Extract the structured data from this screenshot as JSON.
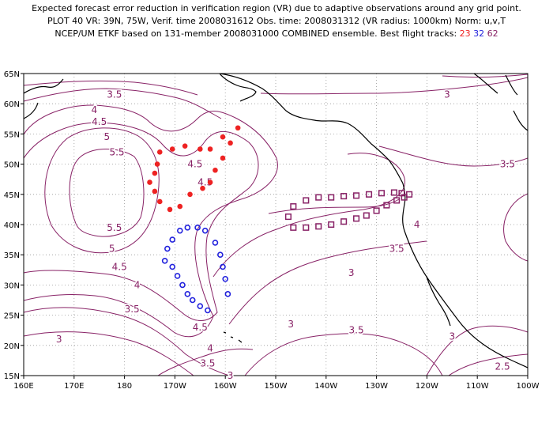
{
  "title": {
    "line1": "Expected forecast error reduction in verification region (VR) due to adaptive observations around any grid point.",
    "line2": "PLOT 40 VR: 39N, 75W, Verif. time 2008031612 Obs. time: 2008031312 (VR radius: 1000km) Norm: u,v,T",
    "line3_prefix": "NCEP/UM ETKF based on 131-member 2008031000 COMBINED ensemble.  Best flight tracks:",
    "track_labels": [
      "23",
      "32",
      "62"
    ]
  },
  "axes": {
    "lon_labels": [
      "160E",
      "170E",
      "180",
      "170W",
      "160W",
      "150W",
      "140W",
      "130W",
      "120W",
      "110W",
      "100W"
    ],
    "lat_labels": [
      "15N",
      "20N",
      "25N",
      "30N",
      "35N",
      "40N",
      "45N",
      "50N",
      "55N",
      "60N",
      "65N"
    ]
  },
  "contour_labels": [
    {
      "text": "3.5",
      "lon": 178,
      "lat": 61.5
    },
    {
      "text": "4",
      "lon": 174,
      "lat": 59
    },
    {
      "text": "4.5",
      "lon": 175,
      "lat": 57
    },
    {
      "text": "5",
      "lon": 176.5,
      "lat": 54.5
    },
    {
      "text": "5.5",
      "lon": 178.5,
      "lat": 52
    },
    {
      "text": "5.5",
      "lon": 178,
      "lat": 39.5
    },
    {
      "text": "5",
      "lon": 177.5,
      "lat": 36
    },
    {
      "text": "4.5",
      "lon": 179,
      "lat": 33
    },
    {
      "text": "4",
      "lon": 182.5,
      "lat": 30
    },
    {
      "text": "3.5",
      "lon": 181.5,
      "lat": 26
    },
    {
      "text": "3",
      "lon": 167,
      "lat": 21
    },
    {
      "text": "4.5",
      "lon": 194,
      "lat": 50
    },
    {
      "text": "4.5",
      "lon": 196,
      "lat": 47
    },
    {
      "text": "4.5",
      "lon": 195,
      "lat": 23
    },
    {
      "text": "4",
      "lon": 197,
      "lat": 19.5
    },
    {
      "text": "3.5",
      "lon": 196.5,
      "lat": 17
    },
    {
      "text": "3",
      "lon": 201,
      "lat": 15
    },
    {
      "text": "3",
      "lon": 244,
      "lat": 61.5
    },
    {
      "text": "2.5",
      "lon": 268,
      "lat": 64
    },
    {
      "text": "3.5",
      "lon": 256,
      "lat": 50
    },
    {
      "text": "4",
      "lon": 238,
      "lat": 40
    },
    {
      "text": "3.5",
      "lon": 234,
      "lat": 36
    },
    {
      "text": "3",
      "lon": 225,
      "lat": 32
    },
    {
      "text": "3",
      "lon": 213,
      "lat": 23.5
    },
    {
      "text": "3.5",
      "lon": 226,
      "lat": 22.5
    },
    {
      "text": "3",
      "lon": 245,
      "lat": 21.5
    },
    {
      "text": "2.5",
      "lon": 255,
      "lat": 16.5
    }
  ],
  "tracks": [
    {
      "id": "23",
      "color": "#ee2222",
      "marker": "dot",
      "points": [
        [
          186.5,
          50
        ],
        [
          187,
          52
        ],
        [
          189.5,
          52.5
        ],
        [
          192,
          53
        ],
        [
          195,
          52.5
        ],
        [
          197,
          52.5
        ],
        [
          199.5,
          54.5
        ],
        [
          202.5,
          56
        ],
        [
          201,
          53.5
        ],
        [
          199.5,
          51
        ],
        [
          198,
          49
        ],
        [
          197,
          47
        ],
        [
          195.5,
          46
        ],
        [
          193,
          45
        ],
        [
          191,
          43
        ],
        [
          189,
          42.5
        ],
        [
          187,
          43.8
        ],
        [
          186,
          45.5
        ],
        [
          185,
          47
        ],
        [
          186,
          48.5
        ]
      ]
    },
    {
      "id": "32",
      "color": "#2222dd",
      "marker": "ring",
      "points": [
        [
          188,
          34
        ],
        [
          188.5,
          36
        ],
        [
          189.5,
          37.5
        ],
        [
          191,
          39
        ],
        [
          192.5,
          39.5
        ],
        [
          194.5,
          39.5
        ],
        [
          196,
          39
        ],
        [
          198,
          37
        ],
        [
          199,
          35
        ],
        [
          199.5,
          33
        ],
        [
          200,
          31
        ],
        [
          200.5,
          28.5
        ],
        [
          196.5,
          25.8
        ],
        [
          195,
          26.5
        ],
        [
          193.5,
          27.5
        ],
        [
          192.5,
          28.5
        ],
        [
          191.5,
          30
        ],
        [
          190.5,
          31.5
        ],
        [
          189.5,
          33
        ]
      ]
    },
    {
      "id": "62",
      "color": "#882266",
      "marker": "square",
      "points": [
        [
          213.5,
          43
        ],
        [
          216,
          44
        ],
        [
          218.5,
          44.5
        ],
        [
          221,
          44.5
        ],
        [
          223.5,
          44.7
        ],
        [
          226,
          44.8
        ],
        [
          228.5,
          45
        ],
        [
          231,
          45.2
        ],
        [
          233.5,
          45.3
        ],
        [
          235,
          45.2
        ],
        [
          236.5,
          45
        ],
        [
          235.5,
          44.5
        ],
        [
          234,
          44
        ],
        [
          232,
          43.2
        ],
        [
          230,
          42.3
        ],
        [
          228,
          41.5
        ],
        [
          226,
          41
        ],
        [
          223.5,
          40.5
        ],
        [
          221,
          40
        ],
        [
          218.5,
          39.7
        ],
        [
          216,
          39.5
        ],
        [
          213.5,
          39.5
        ],
        [
          212.5,
          41.3
        ]
      ]
    }
  ]
}
